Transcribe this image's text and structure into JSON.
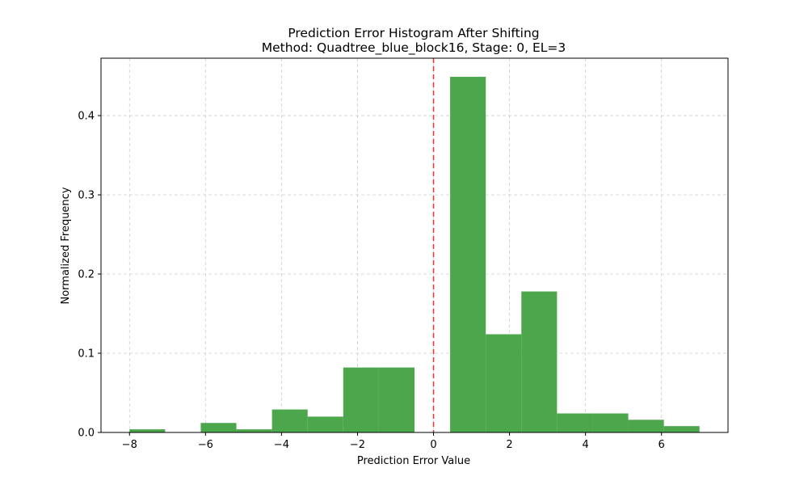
{
  "chart_data": {
    "type": "bar",
    "title": "Prediction Error Histogram After Shifting",
    "subtitle": "Method: Quadtree_blue_block16, Stage: 0, EL=3",
    "xlabel": "Prediction Error Value",
    "ylabel": "Normalized Frequency",
    "xlim": [
      -8.75,
      7.75
    ],
    "ylim": [
      0,
      0.4725
    ],
    "xticks": [
      -8,
      -6,
      -4,
      -2,
      0,
      2,
      4,
      6
    ],
    "xtick_labels": [
      "−8",
      "−6",
      "−4",
      "−2",
      "0",
      "2",
      "4",
      "6"
    ],
    "yticks": [
      0.0,
      0.1,
      0.2,
      0.3,
      0.4
    ],
    "ytick_labels": [
      "0.0",
      "0.1",
      "0.2",
      "0.3",
      "0.4"
    ],
    "grid": true,
    "bar_color": "#4ca64c",
    "reference_line": {
      "x": 0,
      "color": "#e03c3c",
      "style": "dashed"
    },
    "bins": [
      {
        "x0": -8.0,
        "x1": -7.0625,
        "value": 0.004
      },
      {
        "x0": -7.0625,
        "x1": -6.125,
        "value": 0.0
      },
      {
        "x0": -6.125,
        "x1": -5.1875,
        "value": 0.012
      },
      {
        "x0": -5.1875,
        "x1": -4.25,
        "value": 0.004
      },
      {
        "x0": -4.25,
        "x1": -3.3125,
        "value": 0.029
      },
      {
        "x0": -3.3125,
        "x1": -2.375,
        "value": 0.02
      },
      {
        "x0": -2.375,
        "x1": -1.4375,
        "value": 0.082
      },
      {
        "x0": -1.4375,
        "x1": -0.5,
        "value": 0.082
      },
      {
        "x0": -0.5,
        "x1": 0.4375,
        "value": 0.0
      },
      {
        "x0": 0.4375,
        "x1": 1.375,
        "value": 0.449
      },
      {
        "x0": 1.375,
        "x1": 2.3125,
        "value": 0.124
      },
      {
        "x0": 2.3125,
        "x1": 3.25,
        "value": 0.178
      },
      {
        "x0": 3.25,
        "x1": 4.1875,
        "value": 0.024
      },
      {
        "x0": 4.1875,
        "x1": 5.125,
        "value": 0.024
      },
      {
        "x0": 5.125,
        "x1": 6.0625,
        "value": 0.016
      },
      {
        "x0": 6.0625,
        "x1": 7.0,
        "value": 0.008
      }
    ]
  }
}
